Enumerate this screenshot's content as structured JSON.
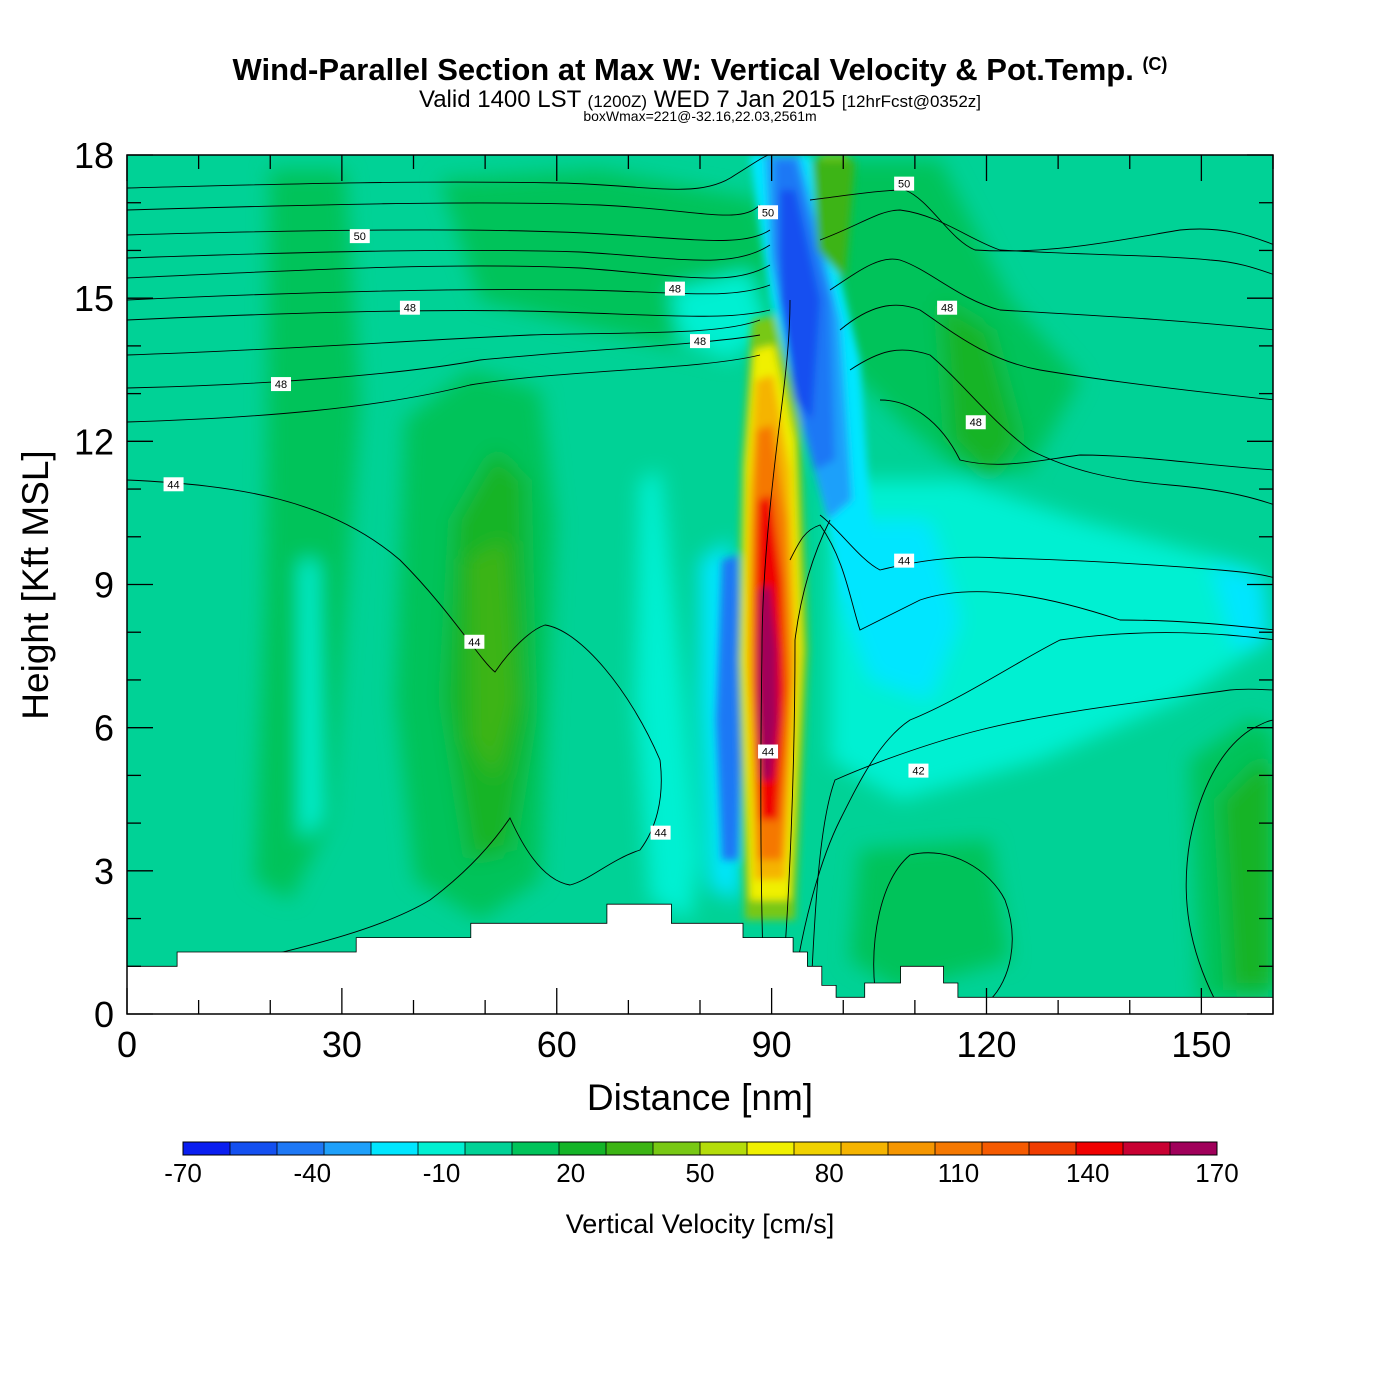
{
  "header": {
    "title": "Wind-Parallel Section at Max W: Vertical Velocity & Pot.Temp.",
    "copyright": "(C)",
    "valid_prefix": "Valid 1400 LST",
    "valid_utc": "(1200Z)",
    "valid_date": "WED 7 Jan 2015",
    "forecast": "[12hrFcst@0352z]",
    "box_wmax": "boxWmax=221@-32.16,22.03,2561m"
  },
  "chart_data": {
    "type": "contour",
    "xlabel": "Distance [nm]",
    "ylabel": "Height [Kft MSL]",
    "xlim": [
      0,
      160
    ],
    "ylim": [
      0,
      18
    ],
    "x_ticks": [
      0,
      30,
      60,
      90,
      120,
      150
    ],
    "x_tick_labels": [
      "0",
      "30",
      "60",
      "90",
      "120",
      "150"
    ],
    "y_ticks": [
      0,
      3,
      6,
      9,
      12,
      15,
      18
    ],
    "y_tick_labels": [
      "0",
      "3",
      "6",
      "9",
      "12",
      "15",
      "18"
    ],
    "colorbar": {
      "label": "Vertical Velocity [cm/s]",
      "levels": [
        -70,
        -60,
        -50,
        -40,
        -30,
        -20,
        -10,
        0,
        10,
        20,
        30,
        40,
        50,
        60,
        70,
        80,
        90,
        100,
        110,
        120,
        130,
        140,
        150,
        160,
        170
      ],
      "tick_labels": [
        "-70",
        "-40",
        "-10",
        "20",
        "50",
        "80",
        "110",
        "140",
        "170"
      ],
      "colors": [
        "#0a1ef0",
        "#1450f0",
        "#1e78f5",
        "#1ea0fa",
        "#00e6ff",
        "#00f0d2",
        "#00d296",
        "#00c35a",
        "#14b428",
        "#3cb414",
        "#78c814",
        "#b4dc0a",
        "#f0f000",
        "#f0d200",
        "#f5b400",
        "#f59600",
        "#f57800",
        "#f55a00",
        "#f03c00",
        "#f00000",
        "#c80032",
        "#a0005a"
      ]
    },
    "contour_labels": [
      {
        "text": "50",
        "x": 32.5,
        "y": 16.3
      },
      {
        "text": "48",
        "x": 39.5,
        "y": 14.8
      },
      {
        "text": "48",
        "x": 21.5,
        "y": 13.2
      },
      {
        "text": "44",
        "x": 6.5,
        "y": 11.1
      },
      {
        "text": "48",
        "x": 76.5,
        "y": 15.2
      },
      {
        "text": "48",
        "x": 80.0,
        "y": 14.1
      },
      {
        "text": "50",
        "x": 89.5,
        "y": 16.8
      },
      {
        "text": "50",
        "x": 108.5,
        "y": 17.4
      },
      {
        "text": "48",
        "x": 114.5,
        "y": 14.8
      },
      {
        "text": "48",
        "x": 118.5,
        "y": 12.4
      },
      {
        "text": "44",
        "x": 108.5,
        "y": 9.5
      },
      {
        "text": "44",
        "x": 48.5,
        "y": 7.8
      },
      {
        "text": "44",
        "x": 89.5,
        "y": 5.5
      },
      {
        "text": "42",
        "x": 110.5,
        "y": 5.1
      },
      {
        "text": "44",
        "x": 74.5,
        "y": 3.8
      }
    ],
    "terrain_kft": [
      [
        0,
        1.0
      ],
      [
        7,
        1.0
      ],
      [
        7,
        1.3
      ],
      [
        32,
        1.3
      ],
      [
        32,
        1.6
      ],
      [
        48,
        1.6
      ],
      [
        48,
        1.9
      ],
      [
        67,
        1.9
      ],
      [
        67,
        2.3
      ],
      [
        76,
        2.3
      ],
      [
        76,
        1.9
      ],
      [
        86,
        1.9
      ],
      [
        86,
        1.6
      ],
      [
        93,
        1.6
      ],
      [
        93,
        1.3
      ],
      [
        95,
        1.3
      ],
      [
        95,
        1.0
      ],
      [
        97,
        1.0
      ],
      [
        97,
        0.6
      ],
      [
        99,
        0.6
      ],
      [
        99,
        0.35
      ],
      [
        103,
        0.35
      ],
      [
        103,
        0.65
      ],
      [
        108,
        0.65
      ],
      [
        108,
        1.0
      ],
      [
        114,
        1.0
      ],
      [
        114,
        0.65
      ],
      [
        116,
        0.65
      ],
      [
        116,
        0.35
      ],
      [
        160,
        0.35
      ]
    ]
  }
}
